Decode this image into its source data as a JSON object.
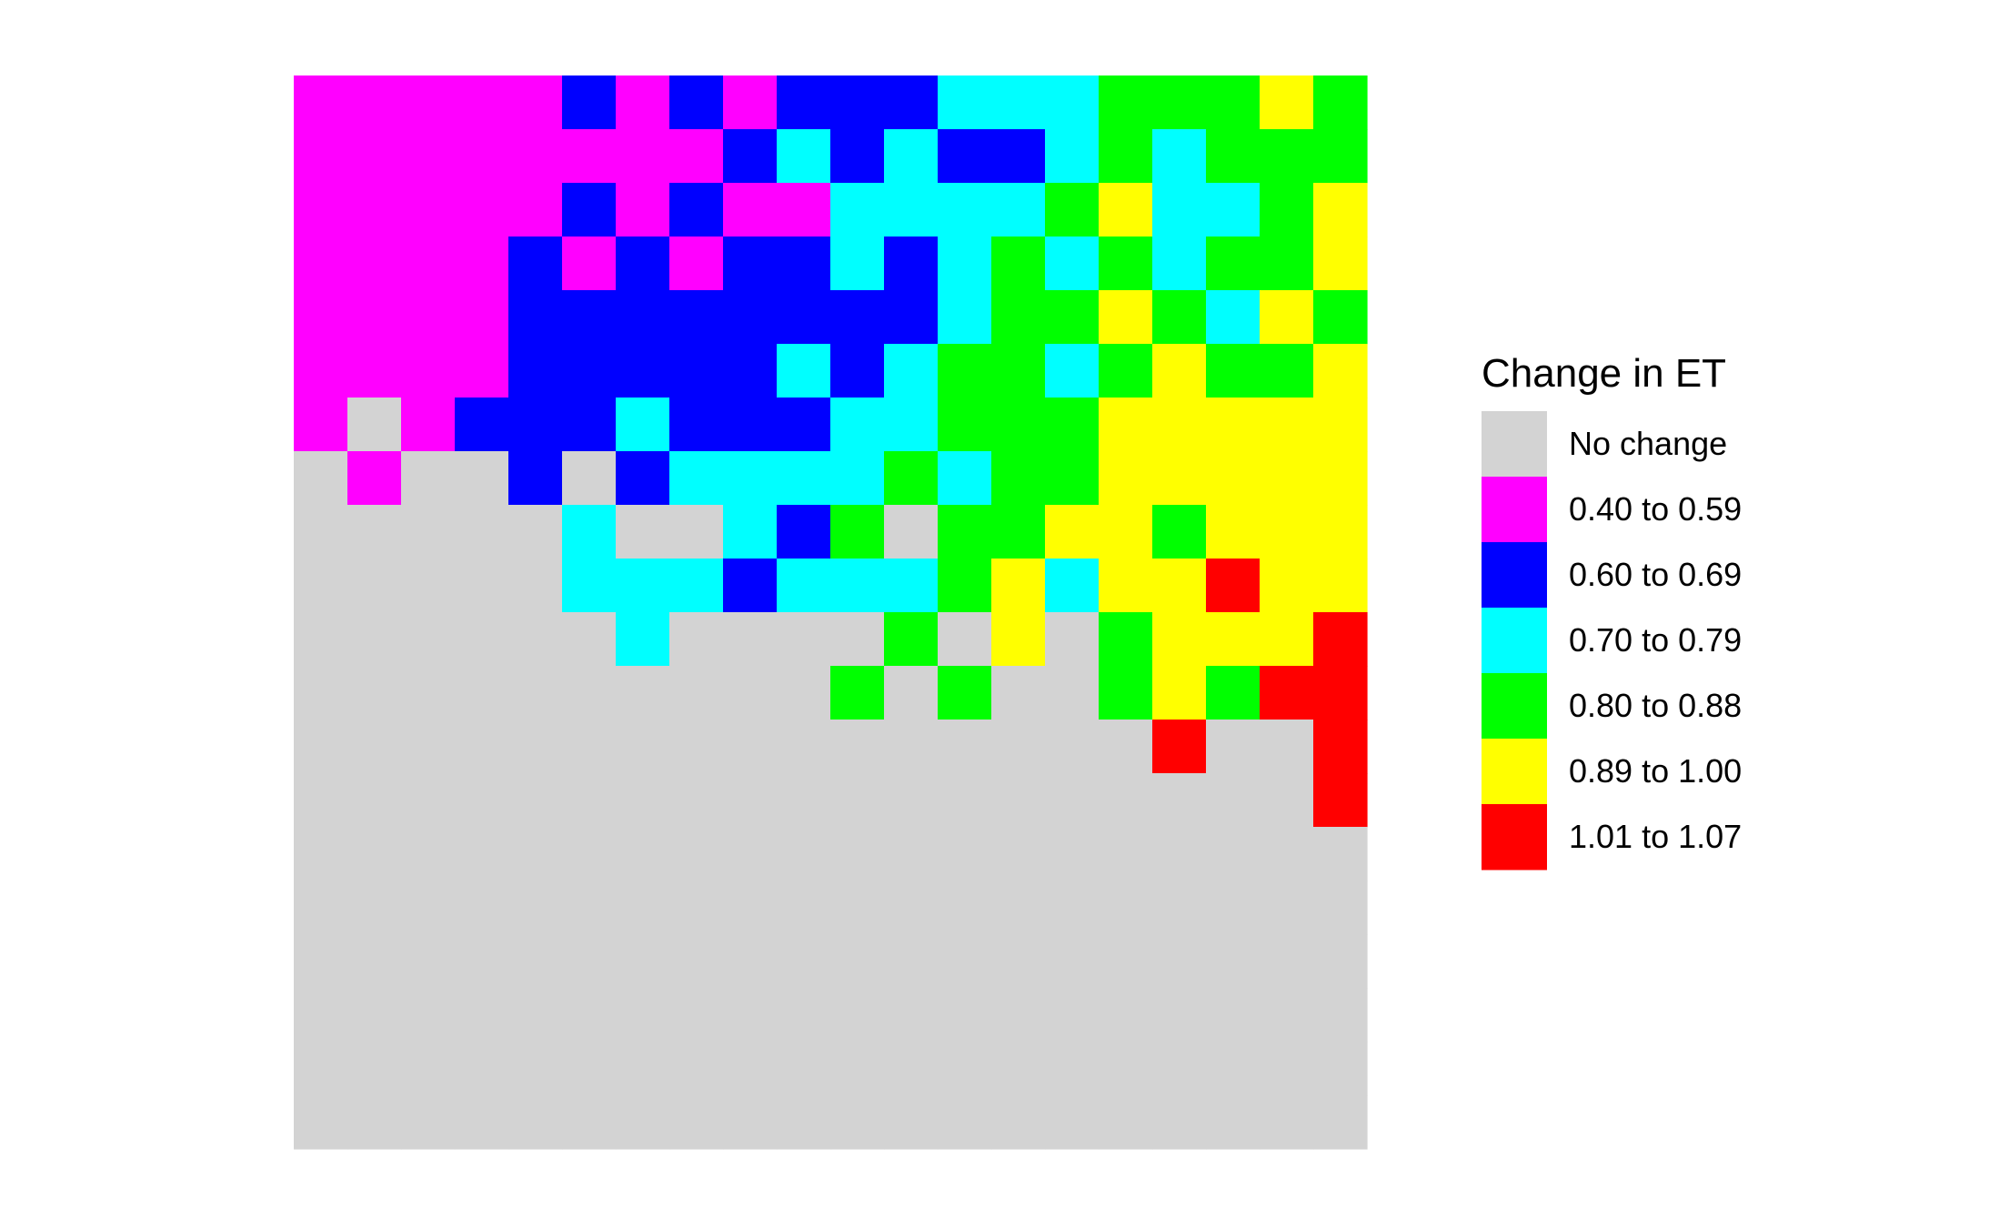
{
  "chart_data": {
    "type": "heatmap",
    "title": "",
    "xlabel": "",
    "ylabel": "",
    "grid": false,
    "legend_position": "right",
    "legend": {
      "title": "Change in ET",
      "entries": [
        {
          "key": "N",
          "label": "No change",
          "color": "#D3D3D3"
        },
        {
          "key": "M",
          "label": "0.40 to 0.59",
          "color": "#FF00FF"
        },
        {
          "key": "B",
          "label": "0.60 to 0.69",
          "color": "#0000FF"
        },
        {
          "key": "C",
          "label": "0.70 to 0.79",
          "color": "#00FFFF"
        },
        {
          "key": "G",
          "label": "0.80 to 0.88",
          "color": "#00FF00"
        },
        {
          "key": "Y",
          "label": "0.89 to 1.00",
          "color": "#FFFF00"
        },
        {
          "key": "R",
          "label": "1.01 to 1.07",
          "color": "#FF0000"
        }
      ]
    },
    "n_cols": 20,
    "n_rows": 20,
    "grid_rows": [
      "MMMMMBMBMBBBCCCGGGYG",
      "MMMMMMMMBCBCBBCGCGGG",
      "MMMMMBMBMMCCCCGYCCGY",
      "MMMMBMBMBBCBCGCGCGGY",
      "MMMMBBBBBBBBCGGYGCYG",
      "MMMMBBBBBCBCGGCGYGGY",
      "MNMBBBCBBBCCGGGYYYYY",
      "NMNNBNBCCCCGCGGYYYYY",
      "NNNNNCNNCBGNGGYYGYYY",
      "NNNNNCCCBCCCGYCYYRYY",
      "NNNNNNCNNNNGNYNGYYYR",
      "NNNNNNNNNNGNGNNGYGRR",
      "NNNNNNNNNNNNNNNNRNNR",
      "NNNNNNNNNNNNNNNNNNNR",
      "NNNNNNNNNNNNNNNNNNNN",
      "NNNNNNNNNNNNNNNNNNNN",
      "NNNNNNNNNNNNNNNNNNNN",
      "NNNNNNNNNNNNNNNNNNNN",
      "NNNNNNNNNNNNNNNNNNNN",
      "NNNNNNNNNNNNNNNNNNNN"
    ]
  }
}
